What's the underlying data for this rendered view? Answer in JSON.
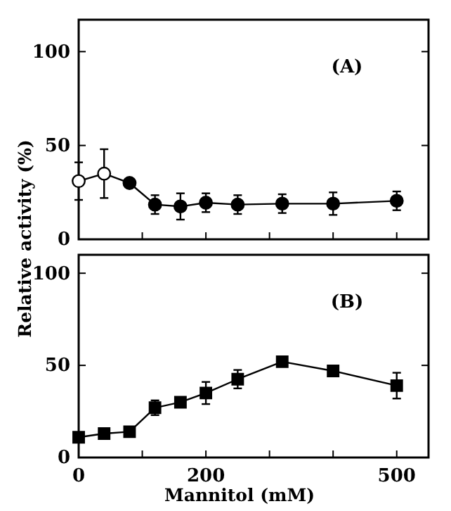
{
  "chart_data": [
    {
      "type": "line",
      "ylabel": "Relative activity (%)",
      "xlim": [
        0,
        550
      ],
      "ylim": [
        0,
        117
      ],
      "xticks": [
        {
          "value": 0,
          "label": null
        },
        {
          "value": 100,
          "label": null
        },
        {
          "value": 200,
          "label": null
        },
        {
          "value": 300,
          "label": null
        },
        {
          "value": 400,
          "label": null
        },
        {
          "value": 500,
          "label": null
        }
      ],
      "yticks": [
        0,
        50,
        100
      ],
      "tick_labels": "y",
      "marker": "circle",
      "annotations": [
        "(A)"
      ],
      "series": [
        {
          "color": "#000000",
          "x": [
            0,
            40,
            80,
            120,
            160,
            200,
            250,
            320,
            400,
            500
          ],
          "values": [
            31,
            35,
            30,
            18.5,
            17.5,
            19.5,
            18.5,
            19,
            19,
            20.5
          ],
          "errors": [
            10,
            13,
            null,
            5,
            7,
            5,
            5,
            5,
            6,
            5
          ],
          "colors": [
            "#ffffff",
            "#ffffff",
            "#000000",
            "#000000",
            "#000000",
            "#000000",
            "#000000",
            "#000000",
            "#000000",
            "#000000"
          ]
        }
      ]
    },
    {
      "type": "line",
      "xlabel": "Mannitol (mM)",
      "xlim": [
        0,
        550
      ],
      "ylim": [
        0,
        110
      ],
      "xticks": [
        0,
        {
          "value": 100,
          "label": null
        },
        200,
        {
          "value": 300,
          "label": null
        },
        {
          "value": 400,
          "label": null
        },
        500
      ],
      "yticks": [
        0,
        50,
        100
      ],
      "marker": "square",
      "annotations": [
        "(B)"
      ],
      "series": [
        {
          "color": "#000000",
          "x": [
            0,
            40,
            80,
            120,
            160,
            200,
            250,
            320,
            400,
            500
          ],
          "values": [
            11,
            13,
            14,
            27,
            30,
            35,
            42.5,
            52,
            47,
            39
          ],
          "errors": [
            null,
            null,
            null,
            4,
            null,
            6,
            5,
            null,
            null,
            7
          ]
        }
      ]
    }
  ]
}
